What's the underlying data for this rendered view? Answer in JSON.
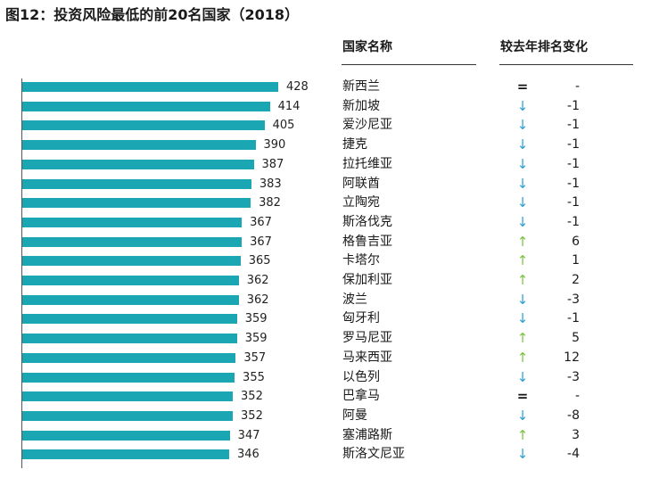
{
  "title": "图12：投资风险最低的前20名国家（2018）",
  "headers": {
    "country": "国家名称",
    "change": "较去年排名变化"
  },
  "colors": {
    "bar": "#1ba6b3",
    "down": "#2a9fd6",
    "up": "#7cc242",
    "equal": "#111111"
  },
  "chart_data": {
    "type": "bar",
    "orientation": "horizontal",
    "title": "图12：投资风险最低的前20名国家（2018）",
    "categories": [
      "新西兰",
      "新加坡",
      "爱沙尼亚",
      "捷克",
      "拉托维亚",
      "阿联酋",
      "立陶宛",
      "斯洛伐克",
      "格鲁吉亚",
      "卡塔尔",
      "保加利亚",
      "波兰",
      "匈牙利",
      "罗马尼亚",
      "马来西亚",
      "以色列",
      "巴拿马",
      "阿曼",
      "塞浦路斯",
      "斯洛文尼亚"
    ],
    "values": [
      428,
      414,
      405,
      390,
      387,
      383,
      382,
      367,
      367,
      365,
      362,
      362,
      359,
      359,
      357,
      355,
      352,
      352,
      347,
      346
    ],
    "xlim": [
      0,
      450
    ],
    "rank_change": [
      "-",
      "-1",
      "-1",
      "-1",
      "-1",
      "-1",
      "-1",
      "-1",
      "6",
      "1",
      "2",
      "-3",
      "-1",
      "5",
      "12",
      "-3",
      "-",
      "-8",
      "3",
      "-4"
    ],
    "trend": [
      "equal",
      "down",
      "down",
      "down",
      "down",
      "down",
      "down",
      "down",
      "up",
      "up",
      "up",
      "down",
      "down",
      "up",
      "up",
      "down",
      "equal",
      "down",
      "up",
      "down"
    ]
  }
}
